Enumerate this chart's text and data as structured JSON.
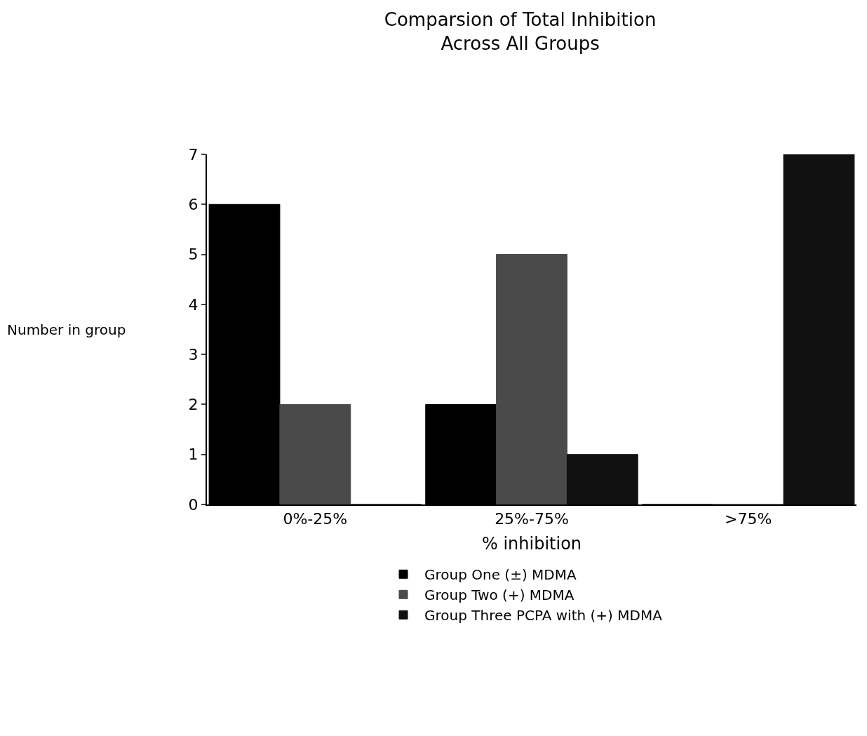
{
  "chart_data": {
    "type": "bar",
    "title": "Comparsion of Total Inhibition\nAcross All Groups",
    "xlabel": "% inhibition",
    "ylabel": "Number in group",
    "categories": [
      "0%-25%",
      "25%-75%",
      ">75%"
    ],
    "series": [
      {
        "name": "Group One (±) MDMA",
        "color": "#000000",
        "values": [
          6,
          2,
          0
        ]
      },
      {
        "name": "Group Two (+) MDMA",
        "color": "#4a4a4a",
        "values": [
          2,
          5,
          0
        ]
      },
      {
        "name": "Group Three PCPA with (+) MDMA",
        "color": "#111111",
        "values": [
          0,
          1,
          7
        ]
      }
    ],
    "ylim": [
      0,
      7
    ],
    "yticks": [
      0,
      1,
      2,
      3,
      4,
      5,
      6,
      7
    ],
    "grid": false,
    "legend": "bottom"
  }
}
